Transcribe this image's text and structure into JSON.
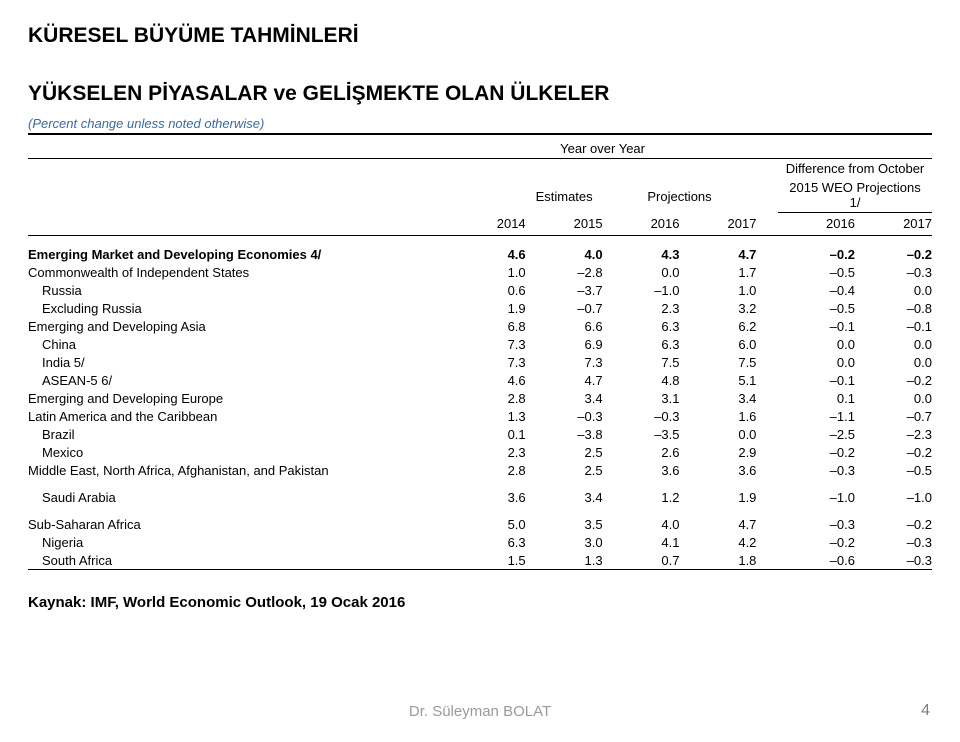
{
  "title": "KÜRESEL BÜYÜME TAHMİNLERİ",
  "subtitle": "YÜKSELEN PİYASALAR ve GELİŞMEKTE OLAN ÜLKELER",
  "unit_note": "(Percent change unless noted otherwise)",
  "headers": {
    "yoy": "Year over Year",
    "estimates": "Estimates",
    "projections": "Projections",
    "diff_line1": "Difference from October",
    "diff_line2": "2015 WEO Projections 1/",
    "years": [
      "2014",
      "2015",
      "2016",
      "2017",
      "2016",
      "2017"
    ]
  },
  "rows": [
    {
      "label": "Emerging Market and Developing Economies 4/",
      "bold": true,
      "indent": 0,
      "values": [
        "4.6",
        "4.0",
        "4.3",
        "4.7",
        "–0.2",
        "–0.2"
      ]
    },
    {
      "label": "Commonwealth of Independent States",
      "bold": false,
      "indent": 0,
      "values": [
        "1.0",
        "–2.8",
        "0.0",
        "1.7",
        "–0.5",
        "–0.3"
      ]
    },
    {
      "label": "Russia",
      "bold": false,
      "indent": 1,
      "values": [
        "0.6",
        "–3.7",
        "–1.0",
        "1.0",
        "–0.4",
        "0.0"
      ]
    },
    {
      "label": "Excluding Russia",
      "bold": false,
      "indent": 1,
      "values": [
        "1.9",
        "–0.7",
        "2.3",
        "3.2",
        "–0.5",
        "–0.8"
      ]
    },
    {
      "label": "Emerging and Developing Asia",
      "bold": false,
      "indent": 0,
      "values": [
        "6.8",
        "6.6",
        "6.3",
        "6.2",
        "–0.1",
        "–0.1"
      ]
    },
    {
      "label": "China",
      "bold": false,
      "indent": 1,
      "values": [
        "7.3",
        "6.9",
        "6.3",
        "6.0",
        "0.0",
        "0.0"
      ]
    },
    {
      "label": "India 5/",
      "bold": false,
      "indent": 1,
      "values": [
        "7.3",
        "7.3",
        "7.5",
        "7.5",
        "0.0",
        "0.0"
      ]
    },
    {
      "label": "ASEAN-5 6/",
      "bold": false,
      "indent": 1,
      "values": [
        "4.6",
        "4.7",
        "4.8",
        "5.1",
        "–0.1",
        "–0.2"
      ]
    },
    {
      "label": "Emerging and Developing Europe",
      "bold": false,
      "indent": 0,
      "values": [
        "2.8",
        "3.4",
        "3.1",
        "3.4",
        "0.1",
        "0.0"
      ]
    },
    {
      "label": "Latin America and the Caribbean",
      "bold": false,
      "indent": 0,
      "values": [
        "1.3",
        "–0.3",
        "–0.3",
        "1.6",
        "–1.1",
        "–0.7"
      ]
    },
    {
      "label": "Brazil",
      "bold": false,
      "indent": 1,
      "values": [
        "0.1",
        "–3.8",
        "–3.5",
        "0.0",
        "–2.5",
        "–2.3"
      ]
    },
    {
      "label": "Mexico",
      "bold": false,
      "indent": 1,
      "values": [
        "2.3",
        "2.5",
        "2.6",
        "2.9",
        "–0.2",
        "–0.2"
      ]
    },
    {
      "label": "Middle East, North Africa, Afghanistan, and Pakistan",
      "bold": false,
      "indent": 0,
      "values": [
        "2.8",
        "2.5",
        "3.6",
        "3.6",
        "–0.3",
        "–0.5"
      ]
    },
    {
      "label": "Saudi Arabia",
      "bold": false,
      "indent": 1,
      "values": [
        "3.6",
        "3.4",
        "1.2",
        "1.9",
        "–1.0",
        "–1.0"
      ],
      "gap": true
    },
    {
      "label": "Sub-Saharan Africa",
      "bold": false,
      "indent": 0,
      "values": [
        "5.0",
        "3.5",
        "4.0",
        "4.7",
        "–0.3",
        "–0.2"
      ],
      "gap": true
    },
    {
      "label": "Nigeria",
      "bold": false,
      "indent": 1,
      "values": [
        "6.3",
        "3.0",
        "4.1",
        "4.2",
        "–0.2",
        "–0.3"
      ]
    },
    {
      "label": "South Africa",
      "bold": false,
      "indent": 1,
      "values": [
        "1.5",
        "1.3",
        "0.7",
        "1.8",
        "–0.6",
        "–0.3"
      ]
    }
  ],
  "caption": "Kaynak: IMF, World Economic Outlook, 19 Ocak 2016",
  "footer": "Dr. Süleyman BOLAT",
  "page_num": "4"
}
